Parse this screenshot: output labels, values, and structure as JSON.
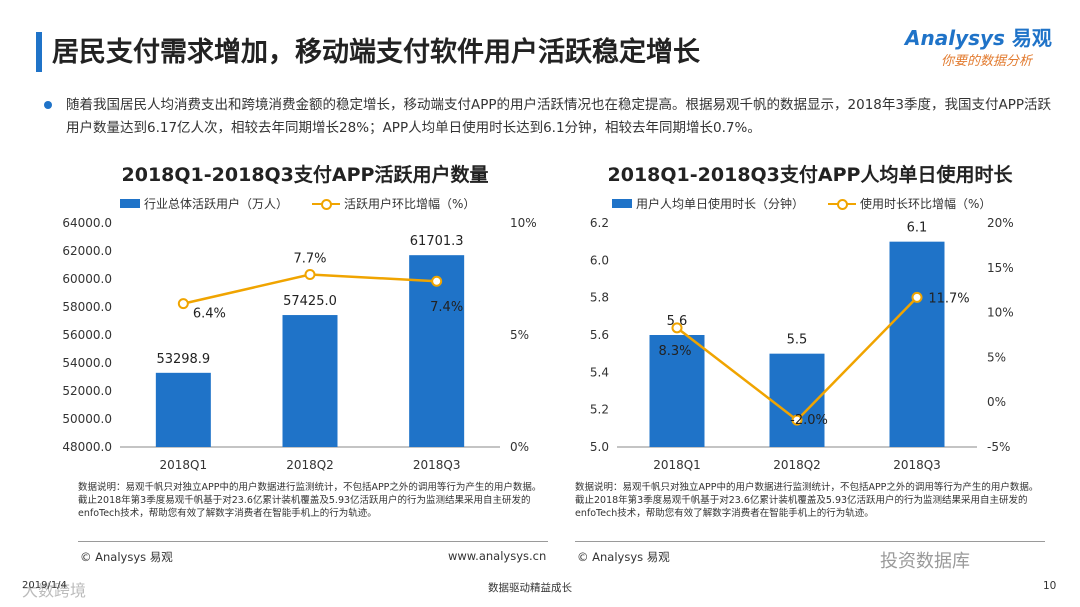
{
  "page": {
    "title": "居民支付需求增加，移动端支付软件用户活跃稳定增长",
    "summary": "随着我国居民人均消费支出和跨境消费金额的稳定增长，移动端支付APP的用户活跃情况也在稳定提高。根据易观千帆的数据显示，2018年3季度，我国支付APP活跃用户数量达到6.17亿人次，相较去年同期增长28%；APP人均单日使用时长达到6.1分钟，相较去年同期增长0.7%。",
    "logo": {
      "name": "Analysys",
      "brand": "易观",
      "slogan": "你要的数据分析"
    },
    "footer": {
      "date": "2019/1/4",
      "tagline": "数据驱动精益成长",
      "page_number": "10",
      "watermark_left": "大数跨境",
      "watermark_right": "投资数据库"
    }
  },
  "chart_data": [
    {
      "type": "bar",
      "title": "2018Q1-2018Q3支付APP活跃用户数量",
      "categories": [
        "2018Q1",
        "2018Q2",
        "2018Q3"
      ],
      "series": [
        {
          "name": "行业总体活跃用户（万人）",
          "kind": "bar",
          "axis": "left",
          "values": [
            53298.9,
            57425.0,
            61701.3
          ],
          "labels": [
            "53298.9",
            "57425.0",
            "61701.3"
          ]
        },
        {
          "name": "活跃用户环比增幅（%）",
          "kind": "line",
          "axis": "right",
          "values": [
            6.4,
            7.7,
            7.4
          ],
          "labels": [
            "6.4%",
            "7.7%",
            "7.4%"
          ]
        }
      ],
      "ylim": [
        48000,
        64000
      ],
      "yticks": [
        "48000.0",
        "50000.0",
        "52000.0",
        "54000.0",
        "56000.0",
        "58000.0",
        "60000.0",
        "62000.0",
        "64000.0"
      ],
      "y2lim": [
        0,
        10
      ],
      "y2ticks": [
        "0%",
        "5%",
        "10%"
      ],
      "colors": {
        "bar": "#1f73c8",
        "line": "#f0a400"
      },
      "note": "数据说明：易观千帆只对独立APP中的用户数据进行监测统计，不包括APP之外的调用等行为产生的用户数据。截止2018年第3季度易观千帆基于对23.6亿累计装机覆盖及5.93亿活跃用户的行为监测结果采用自主研发的enfoTech技术，帮助您有效了解数字消费者在智能手机上的行为轨迹。",
      "source": "© Analysys 易观",
      "website": "www.analysys.cn"
    },
    {
      "type": "bar",
      "title": "2018Q1-2018Q3支付APP人均单日使用时长",
      "categories": [
        "2018Q1",
        "2018Q2",
        "2018Q3"
      ],
      "series": [
        {
          "name": "用户人均单日使用时长（分钟）",
          "kind": "bar",
          "axis": "left",
          "values": [
            5.6,
            5.5,
            6.1
          ],
          "labels": [
            "5.6",
            "5.5",
            "6.1"
          ]
        },
        {
          "name": "使用时长环比增幅（%）",
          "kind": "line",
          "axis": "right",
          "values": [
            8.3,
            -2.0,
            11.7
          ],
          "labels": [
            "8.3%",
            "-2.0%",
            "11.7%"
          ]
        }
      ],
      "ylim": [
        5.0,
        6.2
      ],
      "yticks": [
        "5.0",
        "5.2",
        "5.4",
        "5.6",
        "5.8",
        "6.0",
        "6.2"
      ],
      "y2lim": [
        -5,
        20
      ],
      "y2ticks": [
        "-5%",
        "0%",
        "5%",
        "10%",
        "15%",
        "20%"
      ],
      "colors": {
        "bar": "#1f73c8",
        "line": "#f0a400"
      },
      "note": "数据说明：易观千帆只对独立APP中的用户数据进行监测统计，不包括APP之外的调用等行为产生的用户数据。截止2018年第3季度易观千帆基于对23.6亿累计装机覆盖及5.93亿活跃用户的行为监测结果采用自主研发的enfoTech技术，帮助您有效了解数字消费者在智能手机上的行为轨迹。",
      "source": "© Analysys 易观",
      "website": ""
    }
  ]
}
